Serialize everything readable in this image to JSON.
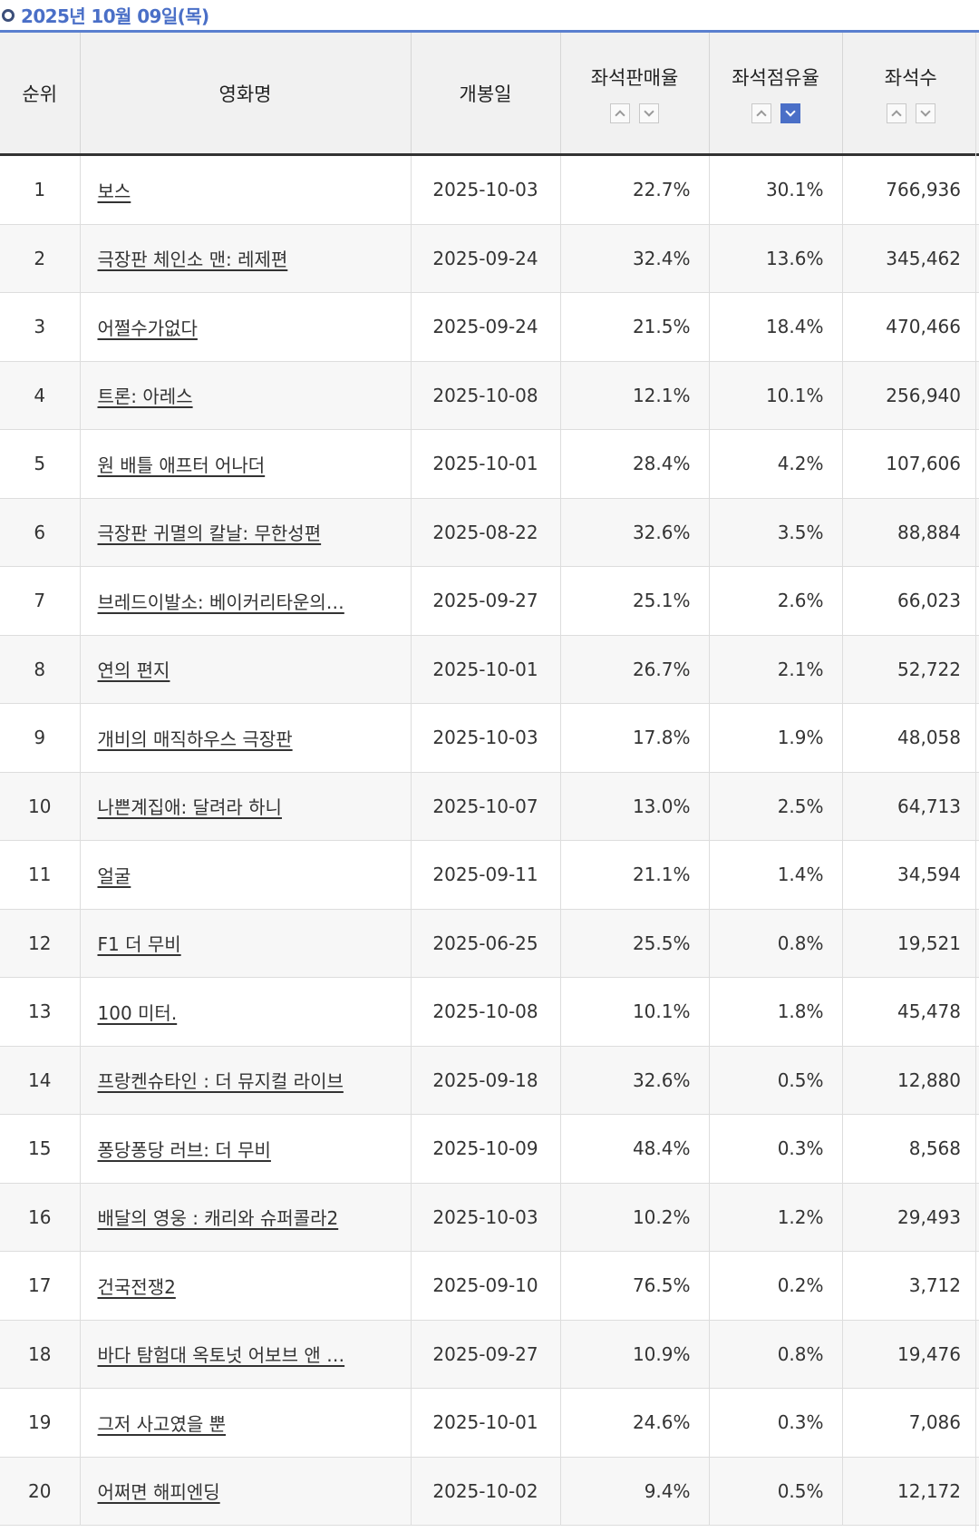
{
  "date_header": "2025년 10월 09일(목)",
  "columns": {
    "rank": "순위",
    "title": "영화명",
    "open_date": "개봉일",
    "sales_rate": "좌석판매율",
    "share_rate": "좌석점유율",
    "seats": "좌석수"
  },
  "sort_state": {
    "sales_rate": "none",
    "share_rate": "desc",
    "seats": "none"
  },
  "accent_color": "#4a6fc7",
  "rows": [
    {
      "rank": "1",
      "title": "보스",
      "open": "2025-10-03",
      "sales": "22.7%",
      "share": "30.1%",
      "seats": "766,936"
    },
    {
      "rank": "2",
      "title": "극장판 체인소 맨: 레제편",
      "open": "2025-09-24",
      "sales": "32.4%",
      "share": "13.6%",
      "seats": "345,462"
    },
    {
      "rank": "3",
      "title": "어쩔수가없다",
      "open": "2025-09-24",
      "sales": "21.5%",
      "share": "18.4%",
      "seats": "470,466"
    },
    {
      "rank": "4",
      "title": "트론: 아레스",
      "open": "2025-10-08",
      "sales": "12.1%",
      "share": "10.1%",
      "seats": "256,940"
    },
    {
      "rank": "5",
      "title": "원 배틀 애프터 어나더",
      "open": "2025-10-01",
      "sales": "28.4%",
      "share": "4.2%",
      "seats": "107,606"
    },
    {
      "rank": "6",
      "title": "극장판 귀멸의 칼날: 무한성편",
      "open": "2025-08-22",
      "sales": "32.6%",
      "share": "3.5%",
      "seats": "88,884"
    },
    {
      "rank": "7",
      "title": "브레드이발소: 베이커리타운의…",
      "open": "2025-09-27",
      "sales": "25.1%",
      "share": "2.6%",
      "seats": "66,023"
    },
    {
      "rank": "8",
      "title": "연의 편지",
      "open": "2025-10-01",
      "sales": "26.7%",
      "share": "2.1%",
      "seats": "52,722"
    },
    {
      "rank": "9",
      "title": "개비의 매직하우스 극장판",
      "open": "2025-10-03",
      "sales": "17.8%",
      "share": "1.9%",
      "seats": "48,058"
    },
    {
      "rank": "10",
      "title": "나쁜계집애: 달려라 하니",
      "open": "2025-10-07",
      "sales": "13.0%",
      "share": "2.5%",
      "seats": "64,713"
    },
    {
      "rank": "11",
      "title": "얼굴",
      "open": "2025-09-11",
      "sales": "21.1%",
      "share": "1.4%",
      "seats": "34,594"
    },
    {
      "rank": "12",
      "title": "F1 더 무비",
      "open": "2025-06-25",
      "sales": "25.5%",
      "share": "0.8%",
      "seats": "19,521"
    },
    {
      "rank": "13",
      "title": "100 미터.",
      "open": "2025-10-08",
      "sales": "10.1%",
      "share": "1.8%",
      "seats": "45,478"
    },
    {
      "rank": "14",
      "title": "프랑켄슈타인 : 더 뮤지컬 라이브",
      "open": "2025-09-18",
      "sales": "32.6%",
      "share": "0.5%",
      "seats": "12,880"
    },
    {
      "rank": "15",
      "title": "퐁당퐁당 러브: 더 무비",
      "open": "2025-10-09",
      "sales": "48.4%",
      "share": "0.3%",
      "seats": "8,568"
    },
    {
      "rank": "16",
      "title": "배달의 영웅 : 캐리와 슈퍼콜라2",
      "open": "2025-10-03",
      "sales": "10.2%",
      "share": "1.2%",
      "seats": "29,493"
    },
    {
      "rank": "17",
      "title": "건국전쟁2",
      "open": "2025-09-10",
      "sales": "76.5%",
      "share": "0.2%",
      "seats": "3,712"
    },
    {
      "rank": "18",
      "title": "바다 탐험대 옥토넛 어보브 앤 …",
      "open": "2025-09-27",
      "sales": "10.9%",
      "share": "0.8%",
      "seats": "19,476"
    },
    {
      "rank": "19",
      "title": "그저 사고였을 뿐",
      "open": "2025-10-01",
      "sales": "24.6%",
      "share": "0.3%",
      "seats": "7,086"
    },
    {
      "rank": "20",
      "title": "어쩌면 해피엔딩",
      "open": "2025-10-02",
      "sales": "9.4%",
      "share": "0.5%",
      "seats": "12,172"
    }
  ]
}
